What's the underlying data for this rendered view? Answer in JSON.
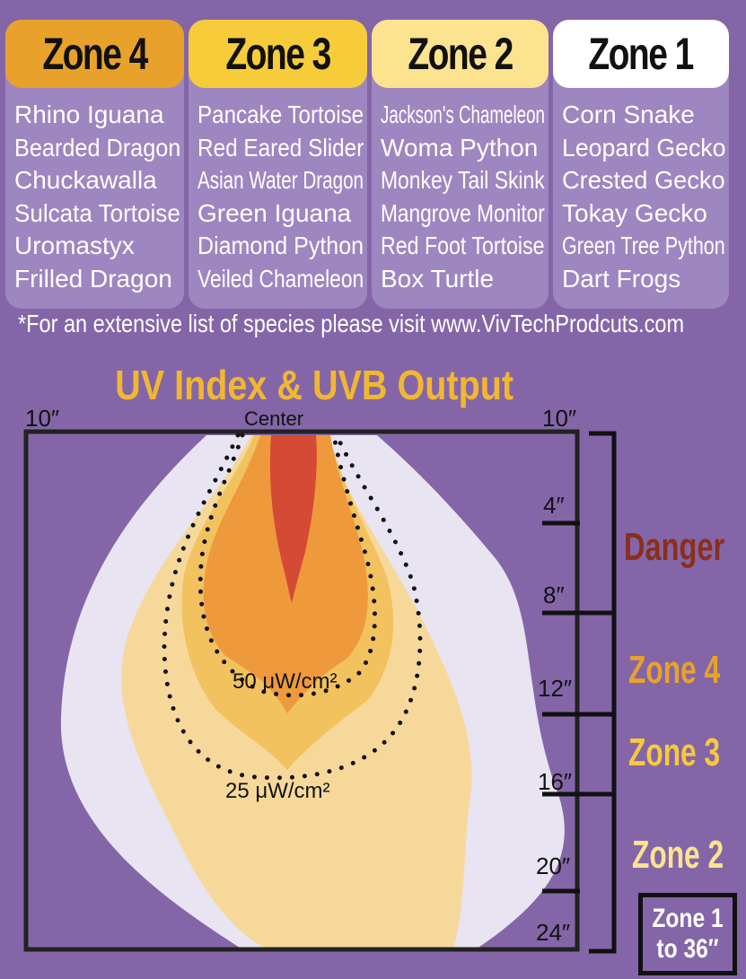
{
  "zones": [
    {
      "title": "Zone 4",
      "color": "#e8a22b",
      "species": [
        "Rhino Iguana",
        "Bearded Dragon",
        "Chuckawalla",
        "Sulcata Tortoise",
        "Uromastyx",
        "Frilled Dragon"
      ]
    },
    {
      "title": "Zone 3",
      "color": "#f7cc3a",
      "species": [
        "Pancake Tortoise",
        "Red Eared Slider",
        "Asian Water Dragon",
        "Green Iguana",
        "Diamond Python",
        "Veiled Chameleon"
      ]
    },
    {
      "title": "Zone 2",
      "color": "#fce390",
      "species": [
        "Jackson's Chameleon",
        "Woma Python",
        "Monkey Tail Skink",
        "Mangrove Monitor",
        "Red Foot Tortoise",
        "Box Turtle"
      ]
    },
    {
      "title": "Zone 1",
      "color": "#ffffff",
      "species": [
        "Corn Snake",
        "Leopard Gecko",
        "Crested Gecko",
        "Tokay Gecko",
        "Green Tree Python",
        "Dart Frogs"
      ]
    }
  ],
  "footnote": "*For an extensive list of species please visit www.VivTechProdcuts.com",
  "diagram": {
    "title": "UV Index & UVB Output",
    "left_edge_label": "10″",
    "right_edge_label": "10″",
    "center_label": "Center",
    "contour_labels": {
      "inner": "50 μW/cm²",
      "outer": "25 μW/cm²"
    },
    "distance_ticks": [
      "4″",
      "8″",
      "12″",
      "16″",
      "20″",
      "24″"
    ],
    "side_zones": [
      {
        "label": "Danger",
        "color": "#8a2f1c"
      },
      {
        "label": "Zone 4",
        "color": "#e8a22b"
      },
      {
        "label": "Zone 3",
        "color": "#f7c93c"
      },
      {
        "label": "Zone 2",
        "color": "#fce390"
      }
    ],
    "zone1_box": "Zone 1 to 36″"
  },
  "colors": {
    "background": "#8466a8",
    "card": "#9e86c0",
    "glow": "#e8e4f1",
    "zone2_fill": "#f6d99a",
    "zone3_fill": "#f2c25f",
    "zone4_fill": "#ee9a3c",
    "core_fill": "#d44a34"
  }
}
